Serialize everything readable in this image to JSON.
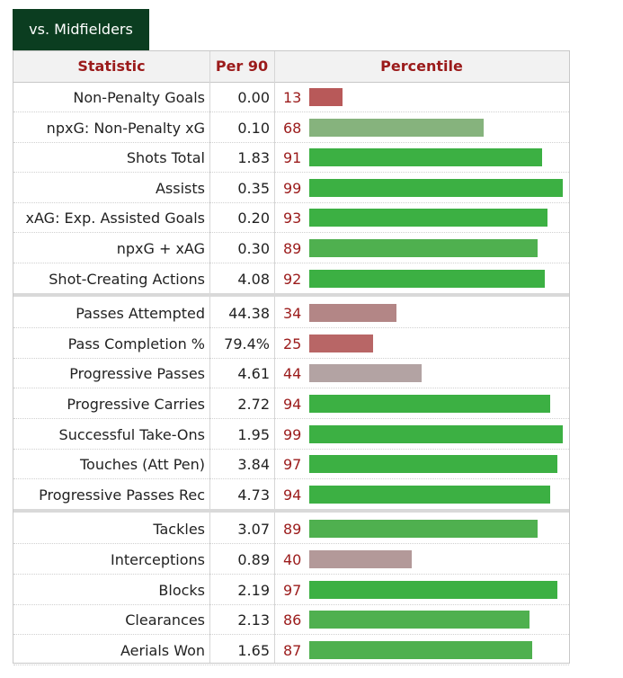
{
  "tab": {
    "label": "vs. Midfielders"
  },
  "header": {
    "statistic": "Statistic",
    "per90": "Per 90",
    "percentile": "Percentile"
  },
  "colors": {
    "high": "#3cb043",
    "mid_high": "#86b37d",
    "low_red": "#b85959",
    "low_pink": "#b38686",
    "neutral": "#b3a3a3"
  },
  "chart_data": {
    "type": "bar",
    "percentile_range": [
      0,
      100
    ],
    "groups": [
      {
        "rows": [
          {
            "statistic": "Non-Penalty Goals",
            "per90": "0.00",
            "percentile": 13,
            "color": "#b85959"
          },
          {
            "statistic": "npxG: Non-Penalty xG",
            "per90": "0.10",
            "percentile": 68,
            "color": "#86b37d"
          },
          {
            "statistic": "Shots Total",
            "per90": "1.83",
            "percentile": 91,
            "color": "#3cb043"
          },
          {
            "statistic": "Assists",
            "per90": "0.35",
            "percentile": 99,
            "color": "#3cb043"
          },
          {
            "statistic": "xAG: Exp. Assisted Goals",
            "per90": "0.20",
            "percentile": 93,
            "color": "#3cb043"
          },
          {
            "statistic": "npxG + xAG",
            "per90": "0.30",
            "percentile": 89,
            "color": "#4fb04f"
          },
          {
            "statistic": "Shot-Creating Actions",
            "per90": "4.08",
            "percentile": 92,
            "color": "#3cb043"
          }
        ]
      },
      {
        "rows": [
          {
            "statistic": "Passes Attempted",
            "per90": "44.38",
            "percentile": 34,
            "color": "#b38686"
          },
          {
            "statistic": "Pass Completion %",
            "per90": "79.4%",
            "percentile": 25,
            "color": "#b86666"
          },
          {
            "statistic": "Progressive Passes",
            "per90": "4.61",
            "percentile": 44,
            "color": "#b3a3a3"
          },
          {
            "statistic": "Progressive Carries",
            "per90": "2.72",
            "percentile": 94,
            "color": "#3cb043"
          },
          {
            "statistic": "Successful Take-Ons",
            "per90": "1.95",
            "percentile": 99,
            "color": "#3cb043"
          },
          {
            "statistic": "Touches (Att Pen)",
            "per90": "3.84",
            "percentile": 97,
            "color": "#3cb043"
          },
          {
            "statistic": "Progressive Passes Rec",
            "per90": "4.73",
            "percentile": 94,
            "color": "#3cb043"
          }
        ]
      },
      {
        "rows": [
          {
            "statistic": "Tackles",
            "per90": "3.07",
            "percentile": 89,
            "color": "#4fb04f"
          },
          {
            "statistic": "Interceptions",
            "per90": "0.89",
            "percentile": 40,
            "color": "#b39999"
          },
          {
            "statistic": "Blocks",
            "per90": "2.19",
            "percentile": 97,
            "color": "#3cb043"
          },
          {
            "statistic": "Clearances",
            "per90": "2.13",
            "percentile": 86,
            "color": "#4fb04f"
          },
          {
            "statistic": "Aerials Won",
            "per90": "1.65",
            "percentile": 87,
            "color": "#4fb04f"
          }
        ]
      }
    ]
  }
}
